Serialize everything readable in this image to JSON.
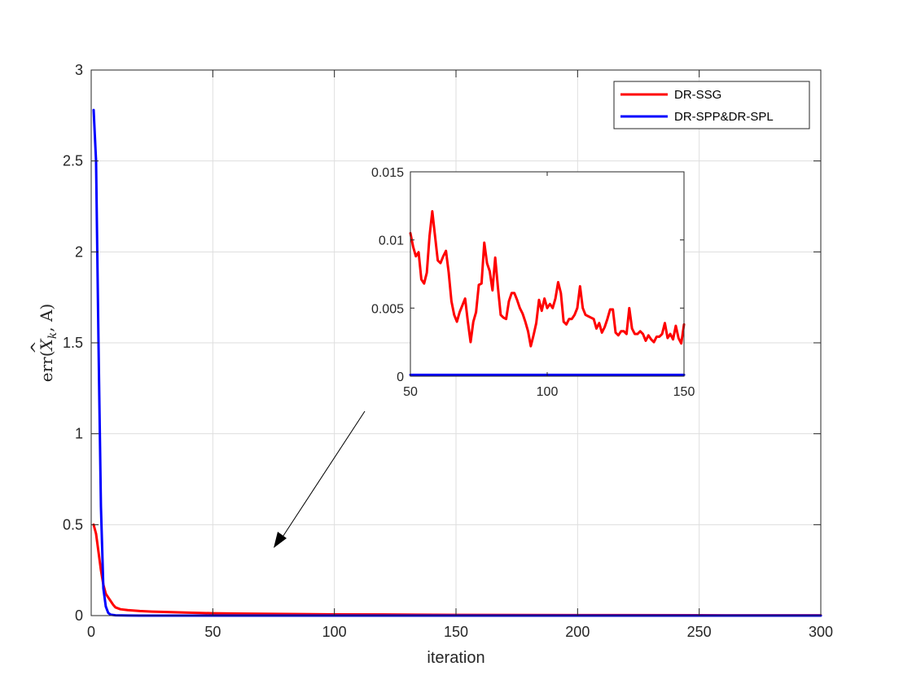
{
  "chart_data": [
    {
      "type": "line",
      "role": "main",
      "xlabel": "iteration",
      "ylabel": "err(X̂_k, A)",
      "ylabel_parts": {
        "prefix": "err(",
        "var": "X",
        "hat": "^",
        "sub": "k",
        "suffix": ", A)"
      },
      "xlim": [
        0,
        300
      ],
      "ylim": [
        0,
        3
      ],
      "xticks": [
        0,
        50,
        100,
        150,
        200,
        250,
        300
      ],
      "yticks": [
        0,
        0.5,
        1,
        1.5,
        2,
        2.5,
        3
      ],
      "yticklabels": [
        "0",
        "0.5",
        "1",
        "1.5",
        "2",
        "2.5",
        "3"
      ],
      "grid": true,
      "legend": {
        "placement": "top-right",
        "entries": [
          "DR-SSG",
          "DR-SPP&DR-SPL"
        ]
      },
      "series": [
        {
          "name": "DR-SSG",
          "color": "#ff0000",
          "x": [
            1,
            2,
            3,
            4,
            5,
            6,
            7,
            8,
            9,
            10,
            12,
            15,
            20,
            25,
            30,
            40,
            50,
            60,
            80,
            100,
            120,
            150,
            200,
            250,
            300
          ],
          "y": [
            0.5,
            0.45,
            0.35,
            0.25,
            0.17,
            0.12,
            0.1,
            0.08,
            0.06,
            0.045,
            0.035,
            0.03,
            0.025,
            0.022,
            0.02,
            0.016,
            0.013,
            0.011,
            0.009,
            0.007,
            0.006,
            0.004,
            0.003,
            0.002,
            0.0015
          ]
        },
        {
          "name": "DR-SPP&DR-SPL",
          "color": "#0000ff",
          "x": [
            1,
            2,
            3,
            4,
            5,
            6,
            7,
            8,
            10,
            15,
            20,
            50,
            100,
            150,
            200,
            250,
            300
          ],
          "y": [
            2.78,
            2.5,
            1.5,
            0.6,
            0.15,
            0.05,
            0.015,
            0.005,
            0.0015,
            0.0005,
            0.0002,
            0.0001,
            0.0001,
            0.0001,
            0.0001,
            0.0001,
            0.0001
          ]
        }
      ]
    },
    {
      "type": "line",
      "role": "inset",
      "xlim": [
        50,
        150
      ],
      "ylim": [
        0,
        0.015
      ],
      "xticks": [
        50,
        100,
        150
      ],
      "yticks": [
        0,
        0.005,
        0.01,
        0.015
      ],
      "yticklabels": [
        "0",
        "0.005",
        "0.01",
        "0.015"
      ],
      "grid": false,
      "series": [
        {
          "name": "DR-SSG",
          "color": "#ff0000",
          "x": [
            50,
            51,
            52,
            53,
            54,
            55,
            56,
            57,
            58,
            59,
            60,
            61,
            62,
            63,
            64,
            65,
            66,
            67,
            68,
            69,
            70,
            71,
            72,
            73,
            74,
            75,
            76,
            77,
            78,
            79,
            80,
            81,
            82,
            83,
            84,
            85,
            86,
            87,
            88,
            89,
            90,
            91,
            92,
            93,
            94,
            95,
            96,
            97,
            98,
            99,
            100,
            101,
            102,
            103,
            104,
            105,
            106,
            107,
            108,
            109,
            110,
            111,
            112,
            113,
            114,
            115,
            116,
            117,
            118,
            119,
            120,
            121,
            122,
            123,
            124,
            125,
            126,
            127,
            128,
            129,
            130,
            131,
            132,
            133,
            134,
            135,
            136,
            137,
            138,
            139,
            140,
            141,
            142,
            143,
            144,
            145,
            146,
            147,
            148,
            149,
            150
          ],
          "y": [
            0.0105,
            0.0095,
            0.0088,
            0.0091,
            0.0071,
            0.0068,
            0.0076,
            0.0103,
            0.0121,
            0.0103,
            0.0085,
            0.0083,
            0.0088,
            0.0092,
            0.0076,
            0.0055,
            0.0045,
            0.004,
            0.0047,
            0.0052,
            0.0057,
            0.004,
            0.0025,
            0.004,
            0.0047,
            0.0067,
            0.0068,
            0.0098,
            0.0083,
            0.0077,
            0.0063,
            0.0087,
            0.0065,
            0.0045,
            0.0043,
            0.0042,
            0.0055,
            0.0061,
            0.0061,
            0.0056,
            0.005,
            0.0046,
            0.004,
            0.0033,
            0.0022,
            0.003,
            0.0039,
            0.0056,
            0.0048,
            0.0057,
            0.005,
            0.0053,
            0.005,
            0.0057,
            0.0069,
            0.0061,
            0.004,
            0.0038,
            0.0042,
            0.0042,
            0.0045,
            0.005,
            0.0066,
            0.005,
            0.0045,
            0.0044,
            0.0043,
            0.0042,
            0.0035,
            0.0039,
            0.0032,
            0.0036,
            0.0042,
            0.0049,
            0.0049,
            0.0032,
            0.003,
            0.0033,
            0.0033,
            0.0031,
            0.005,
            0.0035,
            0.0031,
            0.0031,
            0.0033,
            0.0031,
            0.0026,
            0.003,
            0.0027,
            0.0025,
            0.0029,
            0.0029,
            0.0031,
            0.0039,
            0.0028,
            0.0031,
            0.0027,
            0.0037,
            0.0028,
            0.0024,
            0.0038
          ]
        },
        {
          "name": "DR-SPP&DR-SPL",
          "color": "#0000ff",
          "x": [
            50,
            75,
            100,
            125,
            150
          ],
          "y": [
            0.0001,
            0.0001,
            0.0001,
            0.0001,
            0.0001
          ]
        }
      ]
    }
  ]
}
